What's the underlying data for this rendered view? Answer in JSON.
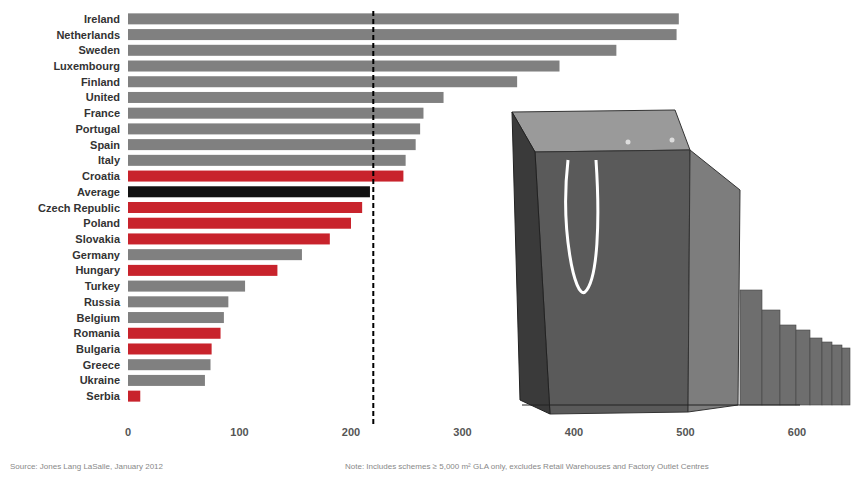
{
  "chart_data": {
    "type": "bar",
    "orientation": "horizontal",
    "categories": [
      "Ireland",
      "Netherlands",
      "Sweden",
      "Luxembourg",
      "Finland",
      "United",
      "France",
      "Portugal",
      "Spain",
      "Italy",
      "Croatia",
      "Average",
      "Czech Republic",
      "Poland",
      "Slovakia",
      "Germany",
      "Hungary",
      "Turkey",
      "Russia",
      "Belgium",
      "Romania",
      "Bulgaria",
      "Greece",
      "Ukraine",
      "Serbia"
    ],
    "values": [
      494,
      492,
      438,
      387,
      349,
      283,
      265,
      262,
      258,
      249,
      247,
      217,
      210,
      200,
      181,
      156,
      134,
      105,
      90,
      86,
      83,
      75,
      74,
      69,
      11
    ],
    "colors": [
      "#808080",
      "#808080",
      "#808080",
      "#808080",
      "#808080",
      "#808080",
      "#808080",
      "#808080",
      "#808080",
      "#808080",
      "#c8232c",
      "#111111",
      "#c8232c",
      "#c8232c",
      "#c8232c",
      "#808080",
      "#c8232c",
      "#808080",
      "#808080",
      "#808080",
      "#c8232c",
      "#c8232c",
      "#808080",
      "#808080",
      "#c8232c"
    ],
    "xlim": [
      0,
      600
    ],
    "xticks": [
      0,
      100,
      200,
      300,
      400,
      500,
      600
    ],
    "reference_line": 220,
    "grid": false,
    "source": "Source: Jones Lang LaSalle, January 2012",
    "note": "Note: Includes schemes ≥ 5,000 m² GLA only, excludes Retail Warehouses and Factory Outlet Centres"
  }
}
